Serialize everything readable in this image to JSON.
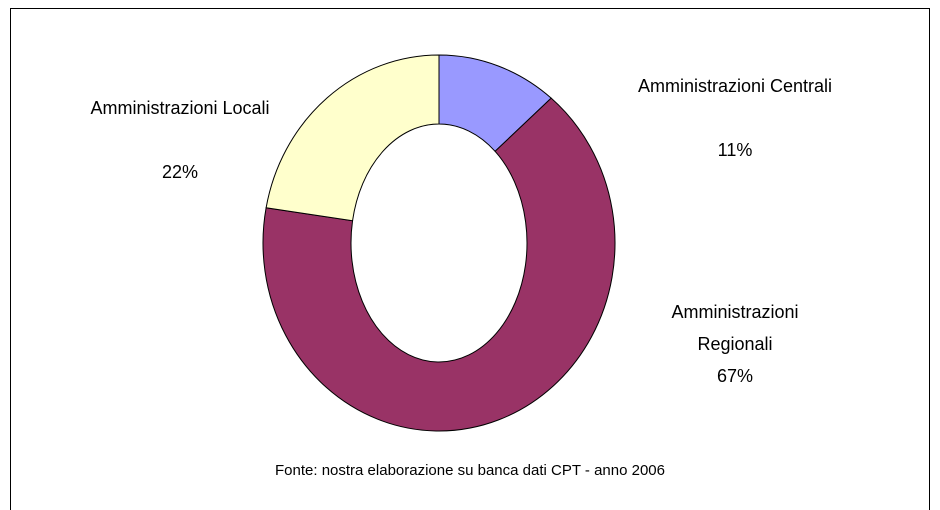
{
  "chart_data": {
    "type": "pie",
    "categories": [
      "Amministrazioni Centrali",
      "Amministrazioni Regionali",
      "Amministrazioni Locali"
    ],
    "values": [
      11,
      67,
      22
    ],
    "value_labels": [
      "11%",
      "67%",
      "22%"
    ],
    "colors": [
      "#9999ff",
      "#993366",
      "#ffffcc"
    ],
    "annotation": "Fonte: nostra elaborazione su banca dati CPT - anno 2006"
  }
}
